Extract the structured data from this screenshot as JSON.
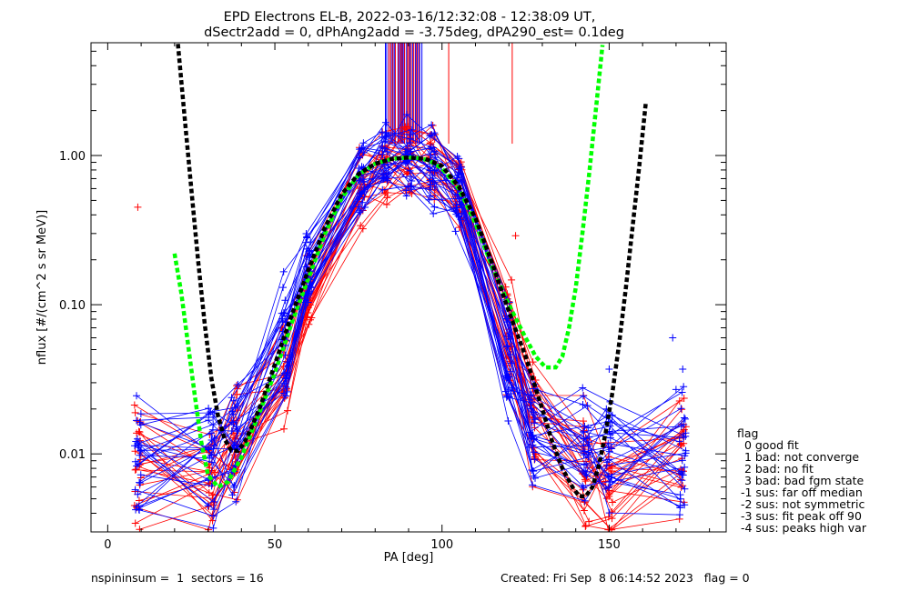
{
  "chart_data": {
    "type": "scatter",
    "title": "EPD Electrons EL-B, 2022-03-16/12:32:08 - 12:38:09 UT,",
    "subtitle": "dSectr2add = 0, dPhAng2add = -3.75deg, dPA290_est=   0.1deg",
    "xlabel": "PA [deg]",
    "ylabel": "nflux [#/(cm^2 s sr MeV)]",
    "xlim": [
      -5,
      185
    ],
    "ylim": [
      0.003,
      5.7
    ],
    "yscale": "log",
    "xticks": [
      {
        "v": 0,
        "label": "0"
      },
      {
        "v": 50,
        "label": "50"
      },
      {
        "v": 100,
        "label": "100"
      },
      {
        "v": 150,
        "label": "150"
      }
    ],
    "yticks": [
      {
        "v": 0.01,
        "label": "0.01"
      },
      {
        "v": 0.1,
        "label": "0.10"
      },
      {
        "v": 1.0,
        "label": "1.00"
      }
    ],
    "pa_bins": [
      9,
      31,
      38,
      53,
      60,
      76,
      83,
      90,
      97,
      105,
      120,
      127,
      143,
      150,
      172
    ],
    "red_shape": [
      0.008,
      0.006,
      0.012,
      0.03,
      0.11,
      0.62,
      0.86,
      0.93,
      0.9,
      0.6,
      0.06,
      0.017,
      0.009,
      0.006,
      0.009
    ],
    "blue_shape": [
      0.009,
      0.009,
      0.013,
      0.06,
      0.17,
      0.76,
      0.96,
      0.93,
      0.85,
      0.58,
      0.045,
      0.015,
      0.012,
      0.01,
      0.01
    ],
    "red_sweeps": 24,
    "blue_sweeps": 28,
    "series": [
      {
        "color": "#00ff00",
        "style": "dashed-fit",
        "x": [
          20,
          22,
          24,
          26,
          28,
          30,
          33,
          36,
          40,
          45,
          50,
          55,
          60,
          65,
          70,
          75,
          80,
          85,
          90,
          93,
          96,
          100,
          105,
          110,
          115,
          120,
          125,
          128,
          131,
          134,
          136,
          138,
          140,
          142,
          144,
          146,
          148
        ],
        "y": [
          0.22,
          0.12,
          0.055,
          0.025,
          0.012,
          0.0072,
          0.006,
          0.0065,
          0.0095,
          0.018,
          0.035,
          0.075,
          0.15,
          0.3,
          0.52,
          0.74,
          0.88,
          0.95,
          0.97,
          0.96,
          0.93,
          0.82,
          0.6,
          0.35,
          0.18,
          0.1,
          0.06,
          0.045,
          0.038,
          0.038,
          0.045,
          0.07,
          0.13,
          0.3,
          0.75,
          2.0,
          5.5
        ]
      },
      {
        "color": "#000000",
        "style": "dashed-fit",
        "x": [
          21,
          23,
          25,
          27,
          29,
          31,
          33,
          35,
          37,
          39,
          41,
          43,
          46,
          50,
          55,
          60,
          65,
          70,
          75,
          80,
          85,
          90,
          95,
          100,
          105,
          110,
          115,
          120,
          125,
          130,
          133,
          136,
          139,
          141,
          143,
          145,
          147,
          149,
          151,
          153,
          155,
          157,
          159,
          161
        ],
        "y": [
          5.6,
          1.8,
          0.6,
          0.2,
          0.075,
          0.032,
          0.018,
          0.0125,
          0.0105,
          0.0105,
          0.012,
          0.015,
          0.022,
          0.04,
          0.085,
          0.17,
          0.33,
          0.55,
          0.75,
          0.88,
          0.95,
          0.97,
          0.95,
          0.85,
          0.62,
          0.38,
          0.19,
          0.09,
          0.045,
          0.02,
          0.012,
          0.008,
          0.006,
          0.0052,
          0.0052,
          0.006,
          0.0085,
          0.014,
          0.026,
          0.055,
          0.13,
          0.33,
          0.85,
          2.3
        ]
      }
    ],
    "vertical_marks": [
      {
        "color": "#0000ff",
        "x_from": 83,
        "x_to": 94,
        "count": 22
      },
      {
        "color": "#ff0000",
        "x_from": 84,
        "x_to": 93,
        "count": 14
      },
      {
        "color": "#ff0000",
        "x_single": [
          102,
          121
        ]
      }
    ],
    "outliers": [
      {
        "x": 9,
        "y": 0.45,
        "color": "#ff0000"
      },
      {
        "x": 169,
        "y": 0.06,
        "color": "#0000ff"
      },
      {
        "x": 172,
        "y": 0.037,
        "color": "#0000ff"
      },
      {
        "x": 170,
        "y": 0.027,
        "color": "#0000ff"
      },
      {
        "x": 150,
        "y": 0.037,
        "color": "#0000ff"
      },
      {
        "x": 122,
        "y": 0.29,
        "color": "#ff0000"
      }
    ],
    "legend": {
      "title": "flag",
      "entries": [
        "  0 good fit",
        "  1 bad: not converge",
        "  2 bad: no fit",
        "  3 bad: bad fgm state",
        " -1 sus: far off median",
        " -2 sus: not symmetric",
        " -3 sus: fit peak off 90",
        " -4 sus: peaks high var"
      ],
      "placement": "right"
    }
  },
  "footer": {
    "left": "nspininsum =  1  sectors = 16",
    "right": "Created: Fri Sep  8 06:14:52 2023   flag = 0"
  }
}
